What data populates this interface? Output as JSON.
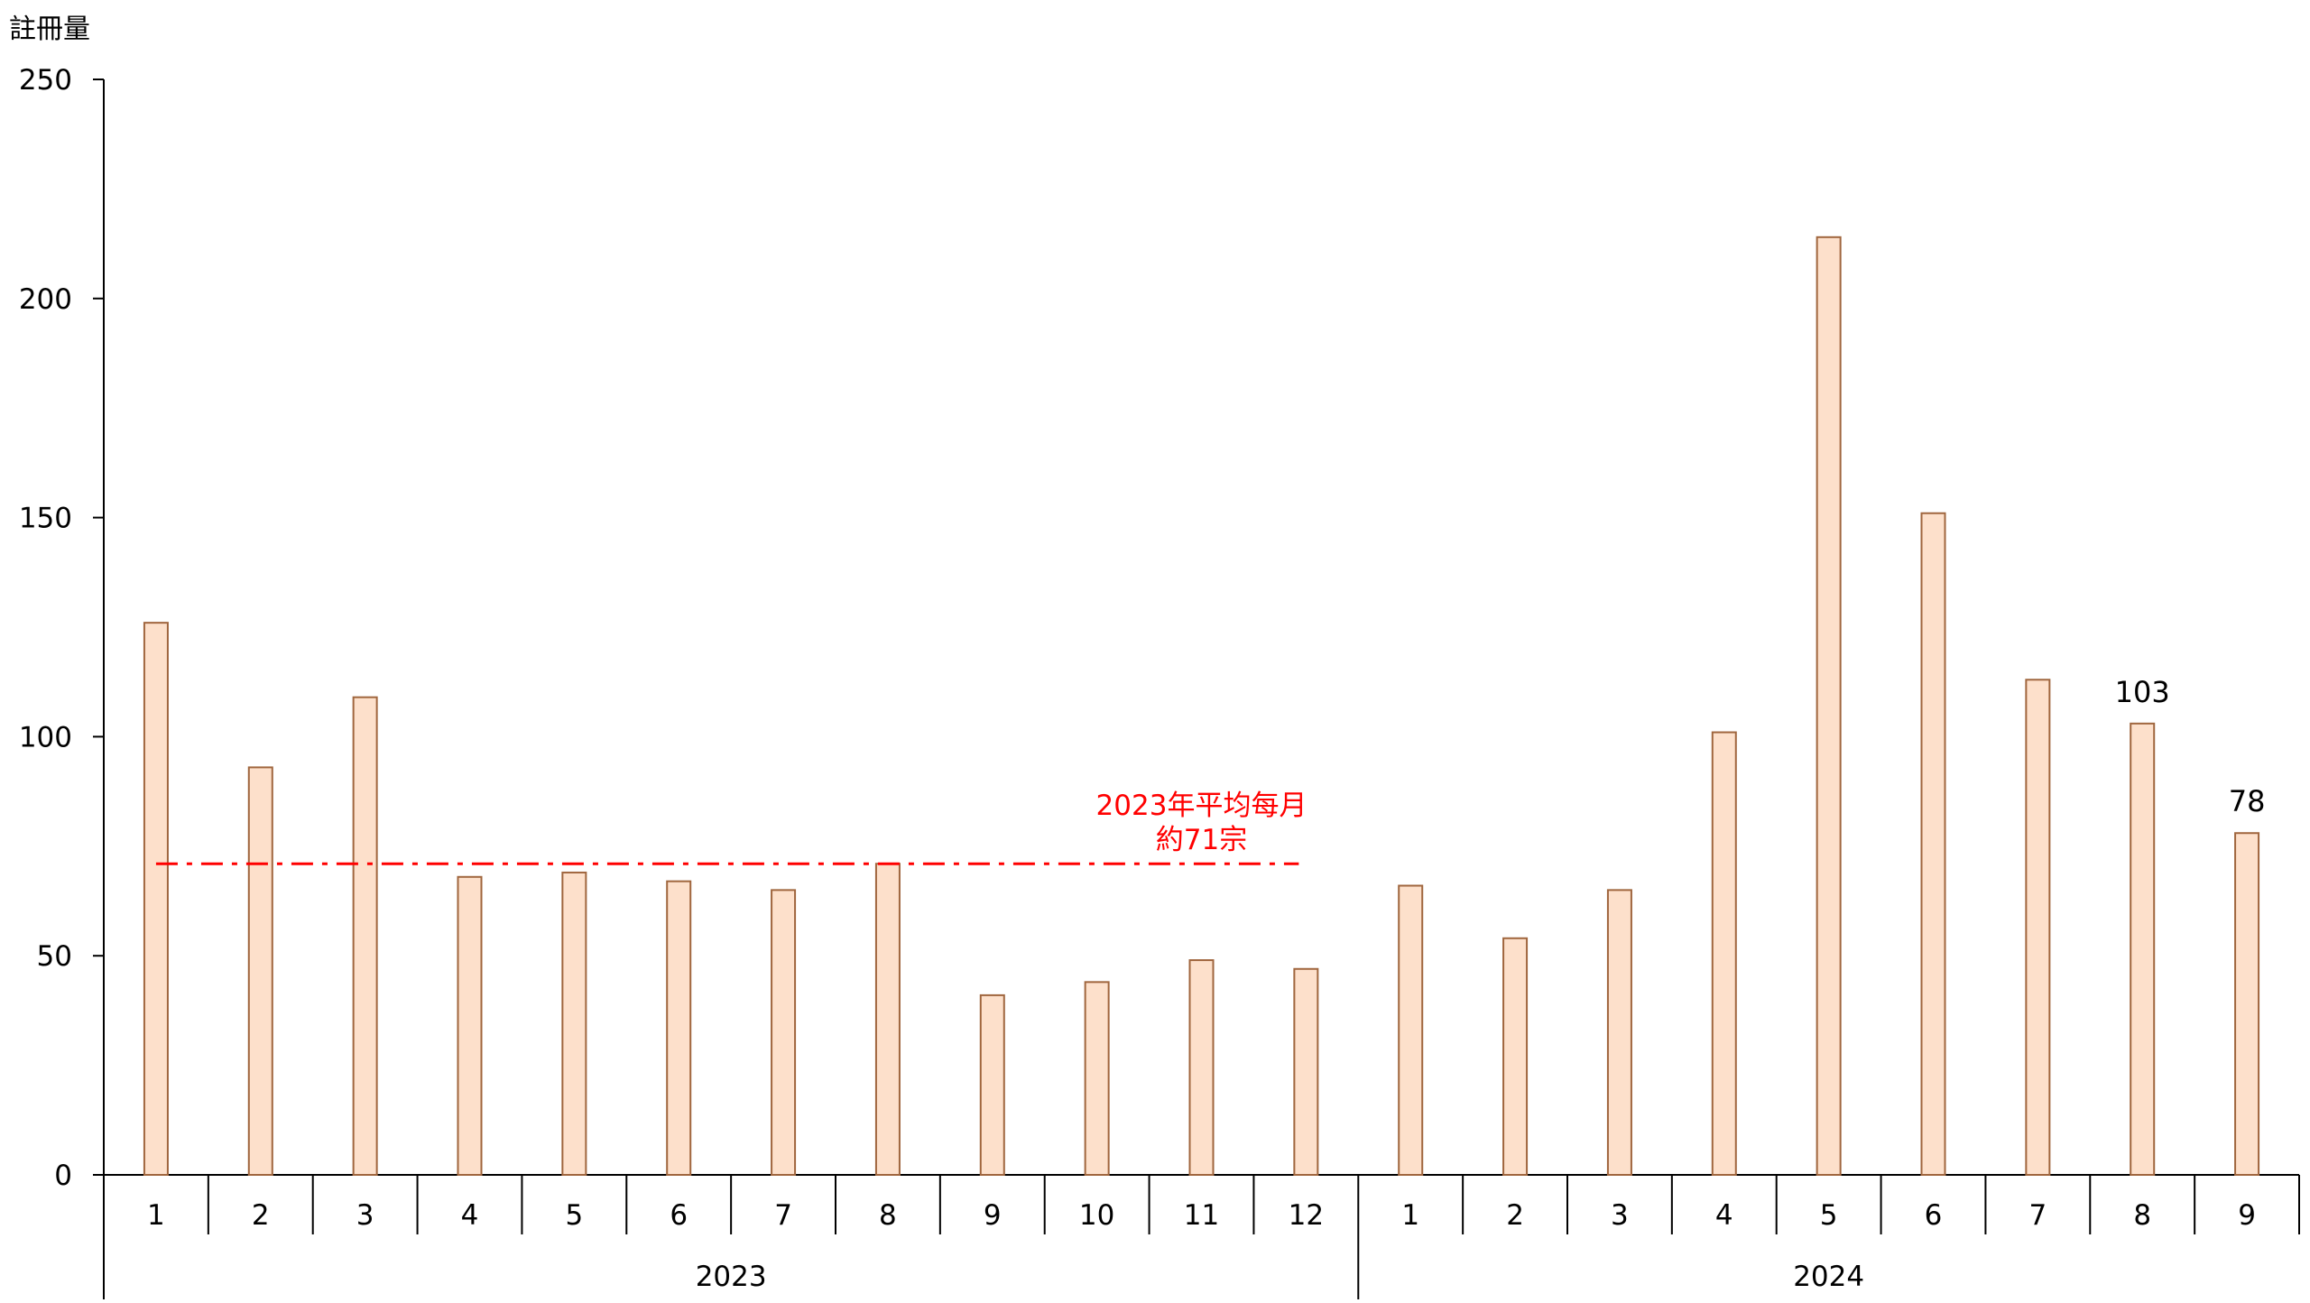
{
  "chart_data": {
    "type": "bar",
    "ylabel": "註冊量",
    "ylim": [
      0,
      250
    ],
    "yticks": [
      0,
      50,
      100,
      150,
      200,
      250
    ],
    "years": [
      {
        "label": "2023",
        "months": [
          "1",
          "2",
          "3",
          "4",
          "5",
          "6",
          "7",
          "8",
          "9",
          "10",
          "11",
          "12"
        ]
      },
      {
        "label": "2024",
        "months": [
          "1",
          "2",
          "3",
          "4",
          "5",
          "6",
          "7",
          "8",
          "9"
        ]
      }
    ],
    "categories": [
      "2023-1",
      "2023-2",
      "2023-3",
      "2023-4",
      "2023-5",
      "2023-6",
      "2023-7",
      "2023-8",
      "2023-9",
      "2023-10",
      "2023-11",
      "2023-12",
      "2024-1",
      "2024-2",
      "2024-3",
      "2024-4",
      "2024-5",
      "2024-6",
      "2024-7",
      "2024-8",
      "2024-9"
    ],
    "values": [
      126,
      93,
      109,
      68,
      69,
      67,
      65,
      71,
      41,
      44,
      49,
      47,
      66,
      54,
      65,
      101,
      214,
      151,
      113,
      103,
      78
    ],
    "data_labels": [
      {
        "index": 19,
        "text": "103"
      },
      {
        "index": 20,
        "text": "78"
      }
    ],
    "reference_line": {
      "value": 71,
      "from_index": 0,
      "to_index": 11,
      "label_lines": [
        "2023年平均每月",
        "約71宗"
      ],
      "color": "#ff0000"
    },
    "colors": {
      "bar_fill": "#fde0cb",
      "bar_stroke": "#a0663e",
      "axis": "#000000"
    },
    "grid": false
  }
}
